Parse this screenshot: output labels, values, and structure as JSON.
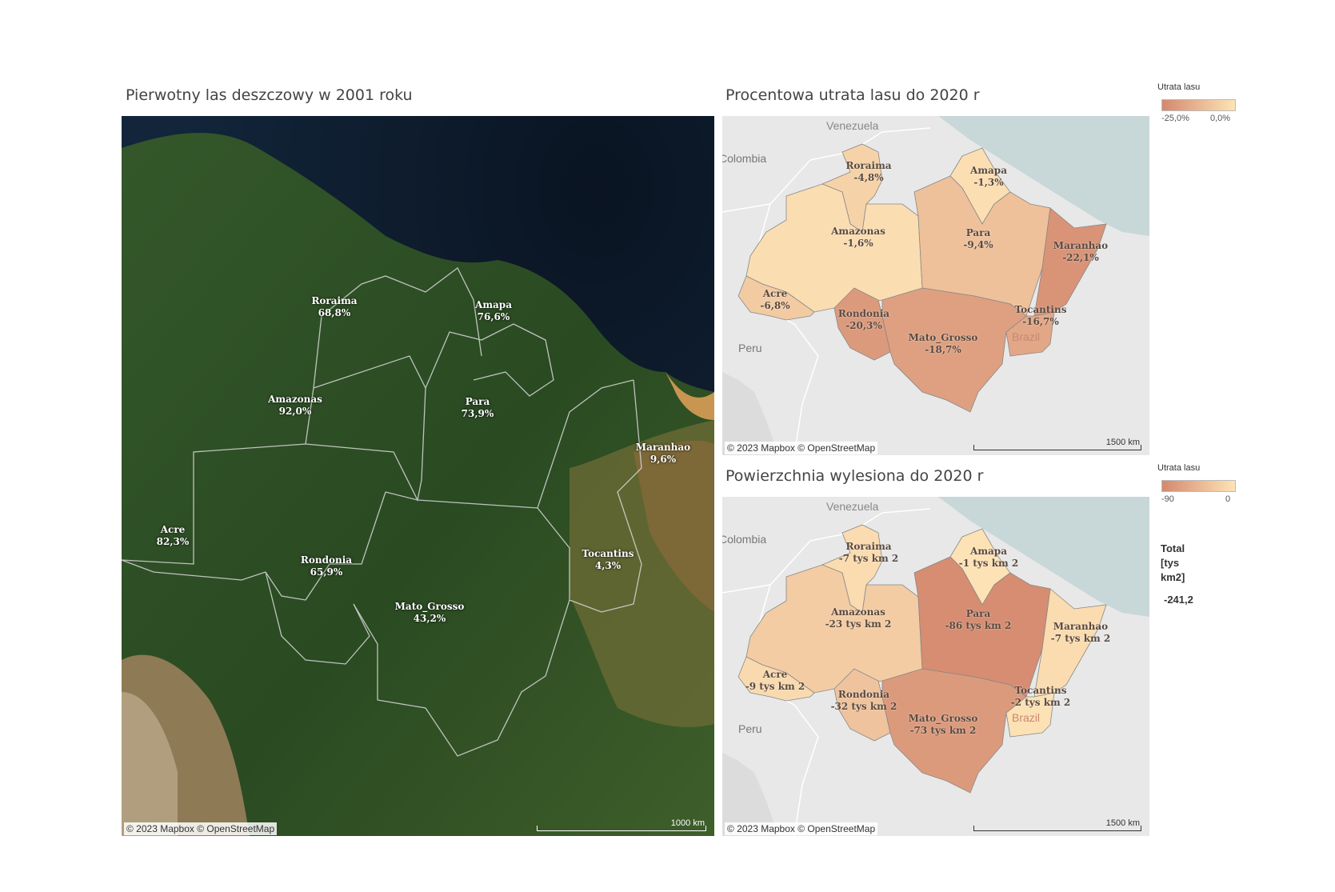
{
  "colors": {
    "accent_dark": "#d4896f",
    "accent_light": "#fde3b6",
    "land": "#e8e8e8",
    "water": "#c8d7d8",
    "forest": "#2c4a24"
  },
  "maps": [
    {
      "title": "Pierwotny las deszczowy w 2001 roku",
      "attribution": "© 2023 Mapbox © OpenStreetMap",
      "scale_label": "1000 km",
      "regions": [
        {
          "name": "Roraima",
          "value": "68,8%"
        },
        {
          "name": "Amapa",
          "value": "76,6%"
        },
        {
          "name": "Amazonas",
          "value": "92,0%"
        },
        {
          "name": "Para",
          "value": "73,9%"
        },
        {
          "name": "Maranhao",
          "value": "9,6%"
        },
        {
          "name": "Acre",
          "value": "82,3%"
        },
        {
          "name": "Rondonia",
          "value": "65,9%"
        },
        {
          "name": "Tocantins",
          "value": "4,3%"
        },
        {
          "name": "Mato_Grosso",
          "value": "43,2%"
        }
      ]
    },
    {
      "title": "Procentowa utrata lasu do 2020 r",
      "attribution": "© 2023 Mapbox © OpenStreetMap",
      "scale_label": "1500 km",
      "legend": {
        "title": "Utrata lasu",
        "min_label": "-25,0%",
        "max_label": "0,0%"
      },
      "place_labels": {
        "venezuela": "Venezuela",
        "colombia": "Colombia",
        "peru": "Peru",
        "brazil": "Brazil"
      },
      "regions": [
        {
          "name": "Roraima",
          "value": "-4,8%",
          "loss": 4.8
        },
        {
          "name": "Amapa",
          "value": "-1,3%",
          "loss": 1.3
        },
        {
          "name": "Amazonas",
          "value": "-1,6%",
          "loss": 1.6
        },
        {
          "name": "Para",
          "value": "-9,4%",
          "loss": 9.4
        },
        {
          "name": "Maranhao",
          "value": "-22,1%",
          "loss": 22.1
        },
        {
          "name": "Acre",
          "value": "-6,8%",
          "loss": 6.8
        },
        {
          "name": "Rondonia",
          "value": "-20,3%",
          "loss": 20.3
        },
        {
          "name": "Tocantins",
          "value": "-16,7%",
          "loss": 16.7
        },
        {
          "name": "Mato_Grosso",
          "value": "-18,7%",
          "loss": 18.7
        }
      ]
    },
    {
      "title": "Powierzchnia wylesiona do 2020 r",
      "attribution": "© 2023 Mapbox © OpenStreetMap",
      "scale_label": "1500 km",
      "legend": {
        "title": "Utrata lasu",
        "min_label": "-90",
        "max_label": "0"
      },
      "total": {
        "label": "Total [tys km2]",
        "label_lines": [
          "Total",
          "[tys",
          "km2]"
        ],
        "value": "-241,2"
      },
      "place_labels": {
        "venezuela": "Venezuela",
        "colombia": "Colombia",
        "peru": "Peru",
        "brazil": "Brazil"
      },
      "regions": [
        {
          "name": "Roraima",
          "value": "-7 tys km 2",
          "loss": 7
        },
        {
          "name": "Amapa",
          "value": "-1 tys km 2",
          "loss": 1
        },
        {
          "name": "Amazonas",
          "value": "-23 tys km 2",
          "loss": 23
        },
        {
          "name": "Para",
          "value": "-86 tys km 2",
          "loss": 86
        },
        {
          "name": "Maranhao",
          "value": "-7 tys km 2",
          "loss": 7
        },
        {
          "name": "Acre",
          "value": "-9 tys km 2",
          "loss": 9
        },
        {
          "name": "Rondonia",
          "value": "-32 tys km 2",
          "loss": 32
        },
        {
          "name": "Tocantins",
          "value": "-2 tys km 2",
          "loss": 2
        },
        {
          "name": "Mato_Grosso",
          "value": "-73 tys km 2",
          "loss": 73
        }
      ]
    }
  ]
}
